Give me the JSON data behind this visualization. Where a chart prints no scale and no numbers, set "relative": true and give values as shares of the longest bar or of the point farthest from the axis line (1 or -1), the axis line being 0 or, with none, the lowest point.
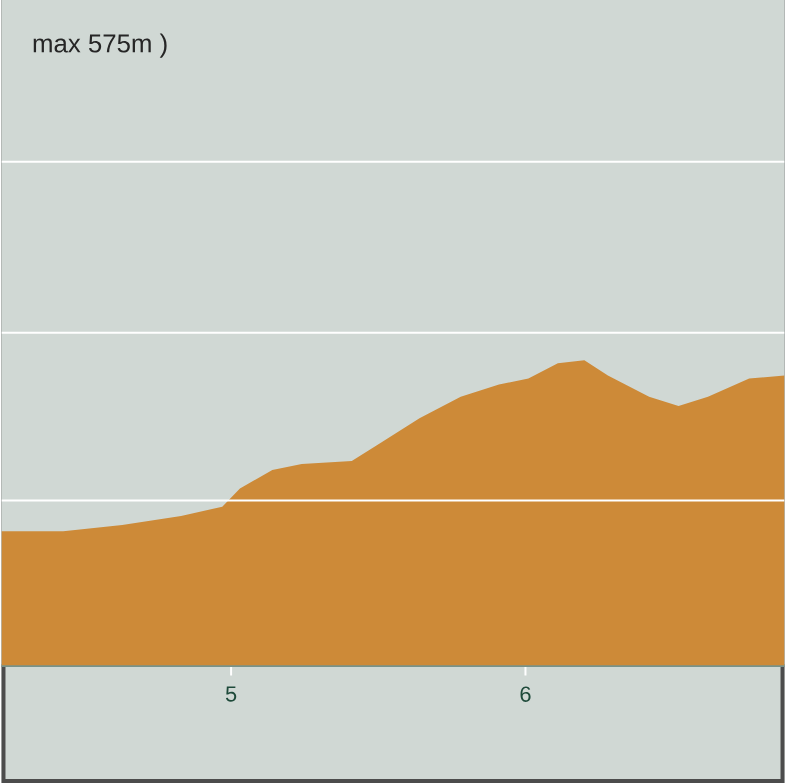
{
  "chart_data": {
    "type": "area",
    "title": "max 575m )",
    "relative": true,
    "color": "#cd8a38",
    "x": [
      4.22,
      4.43,
      4.63,
      4.83,
      4.97,
      5.03,
      5.14,
      5.24,
      5.41,
      5.51,
      5.64,
      5.78,
      5.91,
      6.01,
      6.11,
      6.2,
      6.28,
      6.42,
      6.52,
      6.62,
      6.76,
      6.88
    ],
    "values": [
      0.44,
      0.44,
      0.46,
      0.49,
      0.52,
      0.58,
      0.64,
      0.66,
      0.67,
      0.73,
      0.81,
      0.88,
      0.92,
      0.94,
      0.99,
      1.0,
      0.95,
      0.88,
      0.85,
      0.88,
      0.94,
      0.95
    ],
    "xlim": [
      4.22,
      6.88
    ],
    "xticks": [
      5,
      6
    ],
    "ref_lines": [
      {
        "axis": "y",
        "value": 0.54,
        "color": "#ffffff"
      },
      {
        "axis": "y",
        "value": 1.09,
        "color": "#ffffff"
      },
      {
        "axis": "y",
        "value": 1.65,
        "color": "#ffffff"
      }
    ]
  }
}
